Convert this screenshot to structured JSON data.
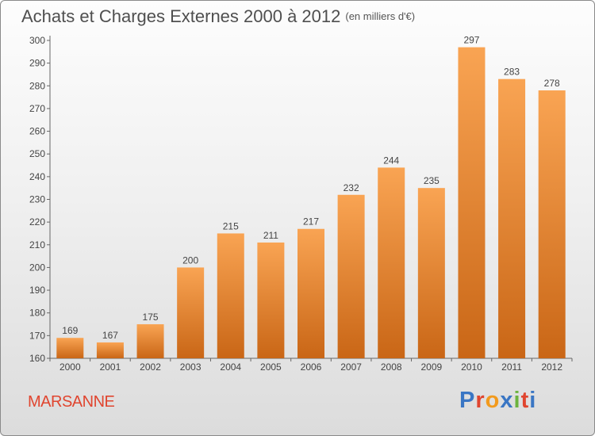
{
  "header": {
    "title": "Achats et Charges Externes 2000 à 2012",
    "unit": "(en milliers d'€)"
  },
  "footer": {
    "commune": "MARSANNE",
    "logo_text": "Proxiti"
  },
  "colors": {
    "bar_light": "#f9a453",
    "bar_dark": "#c96616",
    "commune": "#e0452f",
    "logo": [
      "#3a76c4",
      "#e0452f",
      "#f29a1d",
      "#3a76c4",
      "#6cb33f",
      "#e0452f",
      "#3a76c4"
    ]
  },
  "chart_data": {
    "type": "bar",
    "title": "Achats et Charges Externes 2000 à 2012",
    "subtitle": "(en milliers d'€)",
    "xlabel": "",
    "ylabel": "",
    "categories": [
      "2000",
      "2001",
      "2002",
      "2003",
      "2004",
      "2005",
      "2006",
      "2007",
      "2008",
      "2009",
      "2010",
      "2011",
      "2012"
    ],
    "values": [
      169,
      167,
      175,
      200,
      215,
      211,
      217,
      232,
      244,
      235,
      297,
      283,
      278
    ],
    "ylim": [
      160,
      300
    ],
    "yticks": [
      160,
      170,
      180,
      190,
      200,
      210,
      220,
      230,
      240,
      250,
      260,
      270,
      280,
      290,
      300
    ],
    "grid": false,
    "legend": "none"
  }
}
